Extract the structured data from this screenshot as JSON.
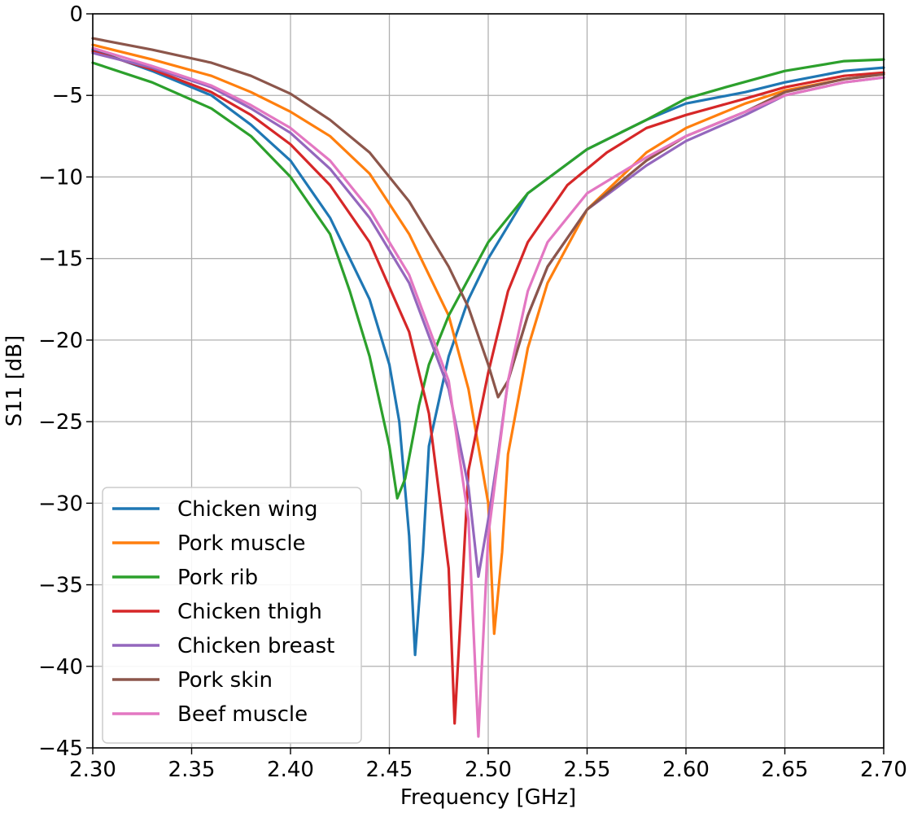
{
  "chart_data": {
    "type": "line",
    "title": "",
    "xlabel": "Frequency [GHz]",
    "ylabel": "S11 [dB]",
    "xlim": [
      2.3,
      2.7
    ],
    "ylim": [
      -45,
      0
    ],
    "xticks": [
      2.3,
      2.35,
      2.4,
      2.45,
      2.5,
      2.55,
      2.6,
      2.65,
      2.7
    ],
    "xtick_labels": [
      "2.30",
      "2.35",
      "2.40",
      "2.45",
      "2.50",
      "2.55",
      "2.60",
      "2.65",
      "2.70"
    ],
    "yticks": [
      0,
      -5,
      -10,
      -15,
      -20,
      -25,
      -30,
      -35,
      -40,
      -45
    ],
    "ytick_labels": [
      "0",
      "−5",
      "−10",
      "−15",
      "−20",
      "−25",
      "−30",
      "−35",
      "−40",
      "−45"
    ],
    "grid": true,
    "legend_position": "lower-left",
    "series": [
      {
        "name": "Chicken wing",
        "color": "#1f77b4",
        "points": [
          [
            2.3,
            -2.2
          ],
          [
            2.33,
            -3.5
          ],
          [
            2.36,
            -5.0
          ],
          [
            2.38,
            -6.8
          ],
          [
            2.4,
            -9.0
          ],
          [
            2.42,
            -12.5
          ],
          [
            2.44,
            -17.5
          ],
          [
            2.45,
            -21.5
          ],
          [
            2.455,
            -25.0
          ],
          [
            2.46,
            -32.0
          ],
          [
            2.463,
            -39.3
          ],
          [
            2.467,
            -33.0
          ],
          [
            2.47,
            -26.5
          ],
          [
            2.48,
            -21.0
          ],
          [
            2.49,
            -17.5
          ],
          [
            2.5,
            -15.0
          ],
          [
            2.52,
            -11.0
          ],
          [
            2.55,
            -8.3
          ],
          [
            2.58,
            -6.5
          ],
          [
            2.6,
            -5.5
          ],
          [
            2.63,
            -4.8
          ],
          [
            2.65,
            -4.2
          ],
          [
            2.68,
            -3.5
          ],
          [
            2.7,
            -3.3
          ]
        ]
      },
      {
        "name": "Pork muscle",
        "color": "#ff7f0e",
        "points": [
          [
            2.3,
            -1.9
          ],
          [
            2.33,
            -2.8
          ],
          [
            2.36,
            -3.8
          ],
          [
            2.38,
            -4.8
          ],
          [
            2.4,
            -6.0
          ],
          [
            2.42,
            -7.5
          ],
          [
            2.44,
            -9.8
          ],
          [
            2.46,
            -13.5
          ],
          [
            2.48,
            -18.5
          ],
          [
            2.49,
            -23.0
          ],
          [
            2.5,
            -30.0
          ],
          [
            2.503,
            -38.0
          ],
          [
            2.507,
            -33.0
          ],
          [
            2.51,
            -27.0
          ],
          [
            2.52,
            -20.5
          ],
          [
            2.53,
            -16.5
          ],
          [
            2.55,
            -12.0
          ],
          [
            2.58,
            -8.5
          ],
          [
            2.6,
            -7.0
          ],
          [
            2.63,
            -5.5
          ],
          [
            2.65,
            -4.7
          ],
          [
            2.68,
            -4.0
          ],
          [
            2.7,
            -3.7
          ]
        ]
      },
      {
        "name": "Pork rib",
        "color": "#2ca02c",
        "points": [
          [
            2.3,
            -3.0
          ],
          [
            2.33,
            -4.2
          ],
          [
            2.36,
            -5.8
          ],
          [
            2.38,
            -7.5
          ],
          [
            2.4,
            -10.0
          ],
          [
            2.42,
            -13.5
          ],
          [
            2.43,
            -17.0
          ],
          [
            2.44,
            -21.0
          ],
          [
            2.45,
            -26.5
          ],
          [
            2.454,
            -29.7
          ],
          [
            2.458,
            -28.5
          ],
          [
            2.465,
            -24.0
          ],
          [
            2.47,
            -21.5
          ],
          [
            2.48,
            -18.5
          ],
          [
            2.5,
            -14.0
          ],
          [
            2.52,
            -11.0
          ],
          [
            2.55,
            -8.3
          ],
          [
            2.58,
            -6.5
          ],
          [
            2.6,
            -5.2
          ],
          [
            2.62,
            -4.5
          ],
          [
            2.65,
            -3.5
          ],
          [
            2.68,
            -2.9
          ],
          [
            2.7,
            -2.8
          ]
        ]
      },
      {
        "name": "Chicken thigh",
        "color": "#d62728",
        "points": [
          [
            2.3,
            -2.3
          ],
          [
            2.33,
            -3.4
          ],
          [
            2.36,
            -4.8
          ],
          [
            2.38,
            -6.2
          ],
          [
            2.4,
            -8.0
          ],
          [
            2.42,
            -10.5
          ],
          [
            2.44,
            -14.0
          ],
          [
            2.46,
            -19.5
          ],
          [
            2.47,
            -24.5
          ],
          [
            2.48,
            -34.0
          ],
          [
            2.483,
            -43.5
          ],
          [
            2.486,
            -37.0
          ],
          [
            2.49,
            -28.0
          ],
          [
            2.5,
            -22.0
          ],
          [
            2.51,
            -17.0
          ],
          [
            2.52,
            -14.0
          ],
          [
            2.54,
            -10.5
          ],
          [
            2.56,
            -8.5
          ],
          [
            2.58,
            -7.0
          ],
          [
            2.6,
            -6.2
          ],
          [
            2.63,
            -5.2
          ],
          [
            2.65,
            -4.5
          ],
          [
            2.68,
            -3.8
          ],
          [
            2.7,
            -3.6
          ]
        ]
      },
      {
        "name": "Chicken breast",
        "color": "#9467bd",
        "points": [
          [
            2.3,
            -2.4
          ],
          [
            2.33,
            -3.3
          ],
          [
            2.36,
            -4.5
          ],
          [
            2.38,
            -5.8
          ],
          [
            2.4,
            -7.3
          ],
          [
            2.42,
            -9.5
          ],
          [
            2.44,
            -12.5
          ],
          [
            2.46,
            -16.5
          ],
          [
            2.48,
            -23.0
          ],
          [
            2.49,
            -29.0
          ],
          [
            2.495,
            -34.5
          ],
          [
            2.5,
            -31.0
          ],
          [
            2.505,
            -27.0
          ],
          [
            2.51,
            -22.5
          ],
          [
            2.52,
            -18.5
          ],
          [
            2.53,
            -15.5
          ],
          [
            2.55,
            -12.0
          ],
          [
            2.58,
            -9.3
          ],
          [
            2.6,
            -7.8
          ],
          [
            2.63,
            -6.2
          ],
          [
            2.65,
            -5.0
          ],
          [
            2.68,
            -4.2
          ],
          [
            2.7,
            -3.9
          ]
        ]
      },
      {
        "name": "Pork skin",
        "color": "#8c564b",
        "points": [
          [
            2.3,
            -1.5
          ],
          [
            2.33,
            -2.2
          ],
          [
            2.36,
            -3.0
          ],
          [
            2.38,
            -3.8
          ],
          [
            2.4,
            -4.9
          ],
          [
            2.42,
            -6.5
          ],
          [
            2.44,
            -8.5
          ],
          [
            2.46,
            -11.5
          ],
          [
            2.48,
            -15.5
          ],
          [
            2.49,
            -18.0
          ],
          [
            2.5,
            -21.5
          ],
          [
            2.505,
            -23.5
          ],
          [
            2.51,
            -22.5
          ],
          [
            2.52,
            -18.5
          ],
          [
            2.53,
            -15.5
          ],
          [
            2.55,
            -12.0
          ],
          [
            2.58,
            -9.0
          ],
          [
            2.6,
            -7.5
          ],
          [
            2.63,
            -6.0
          ],
          [
            2.65,
            -4.8
          ],
          [
            2.68,
            -4.0
          ],
          [
            2.7,
            -3.7
          ]
        ]
      },
      {
        "name": "Beef muscle",
        "color": "#e377c2",
        "points": [
          [
            2.3,
            -2.1
          ],
          [
            2.33,
            -3.2
          ],
          [
            2.36,
            -4.4
          ],
          [
            2.38,
            -5.6
          ],
          [
            2.4,
            -7.0
          ],
          [
            2.42,
            -9.0
          ],
          [
            2.44,
            -12.0
          ],
          [
            2.46,
            -16.0
          ],
          [
            2.48,
            -22.5
          ],
          [
            2.49,
            -31.0
          ],
          [
            2.495,
            -44.3
          ],
          [
            2.5,
            -32.0
          ],
          [
            2.51,
            -22.5
          ],
          [
            2.52,
            -17.0
          ],
          [
            2.53,
            -14.0
          ],
          [
            2.55,
            -11.0
          ],
          [
            2.58,
            -8.8
          ],
          [
            2.6,
            -7.5
          ],
          [
            2.63,
            -6.0
          ],
          [
            2.65,
            -5.0
          ],
          [
            2.68,
            -4.2
          ],
          [
            2.7,
            -3.9
          ]
        ]
      }
    ]
  }
}
